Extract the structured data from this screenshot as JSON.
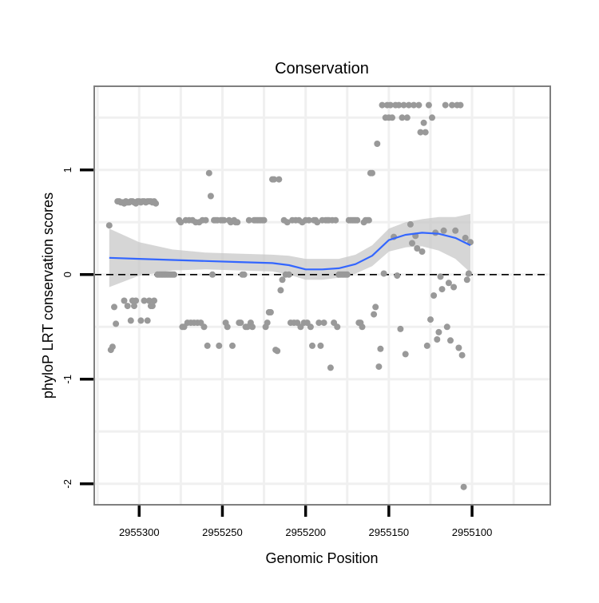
{
  "chart_data": {
    "type": "scatter",
    "title": "Conservation",
    "xlabel": "Genomic Position",
    "ylabel": "phyloP LRT conservation scores",
    "x_reversed": true,
    "xlim": [
      2955327,
      2955053
    ],
    "ylim": [
      -2.2,
      1.8
    ],
    "x_ticks": [
      2955300,
      2955250,
      2955200,
      2955150,
      2955100
    ],
    "x_tick_labels": [
      "2955300",
      "2955250",
      "2955200",
      "2955150",
      "2955100"
    ],
    "y_ticks": [
      -2,
      -1,
      0,
      1
    ],
    "y_tick_labels": [
      "-2",
      "-1",
      "0",
      "1"
    ],
    "grid": true,
    "reference_line": {
      "y": 0,
      "style": "dashed",
      "color": "#000000"
    },
    "colors": {
      "points": "#999999",
      "smooth": "#3366FF",
      "ribbon": "#C8C8C8",
      "grid": "#F0F0F0",
      "frame": "#7F7F7F"
    },
    "points": [
      [
        2955318,
        0.47
      ],
      [
        2955317,
        -0.72
      ],
      [
        2955316,
        -0.69
      ],
      [
        2955315,
        -0.31
      ],
      [
        2955314,
        -0.47
      ],
      [
        2955313,
        0.7
      ],
      [
        2955312,
        0.7
      ],
      [
        2955311,
        0.69
      ],
      [
        2955310,
        0.69
      ],
      [
        2955309,
        0.68
      ],
      [
        2955308,
        0.7
      ],
      [
        2955307,
        0.69
      ],
      [
        2955306,
        0.69
      ],
      [
        2955305,
        0.7
      ],
      [
        2955304,
        0.7
      ],
      [
        2955303,
        0.69
      ],
      [
        2955302,
        0.68
      ],
      [
        2955301,
        0.7
      ],
      [
        2955300,
        0.7
      ],
      [
        2955299,
        0.69
      ],
      [
        2955298,
        0.7
      ],
      [
        2955297,
        0.7
      ],
      [
        2955296,
        0.69
      ],
      [
        2955295,
        0.7
      ],
      [
        2955294,
        0.7
      ],
      [
        2955293,
        0.7
      ],
      [
        2955292,
        0.69
      ],
      [
        2955291,
        0.7
      ],
      [
        2955290,
        0.68
      ],
      [
        2955309,
        -0.25
      ],
      [
        2955307,
        -0.3
      ],
      [
        2955305,
        -0.44
      ],
      [
        2955304,
        -0.25
      ],
      [
        2955303,
        -0.3
      ],
      [
        2955302,
        -0.25
      ],
      [
        2955299,
        -0.44
      ],
      [
        2955297,
        -0.25
      ],
      [
        2955295,
        -0.44
      ],
      [
        2955294,
        -0.25
      ],
      [
        2955293,
        -0.3
      ],
      [
        2955292,
        -0.3
      ],
      [
        2955291,
        -0.25
      ],
      [
        2955289,
        0.0
      ],
      [
        2955288,
        0.0
      ],
      [
        2955287,
        0.0
      ],
      [
        2955286,
        0.0
      ],
      [
        2955285,
        0.0
      ],
      [
        2955284,
        0.0
      ],
      [
        2955283,
        0.0
      ],
      [
        2955282,
        0.0
      ],
      [
        2955281,
        0.0
      ],
      [
        2955280,
        0.0
      ],
      [
        2955279,
        0.0
      ],
      [
        2955276,
        0.52
      ],
      [
        2955275,
        0.5
      ],
      [
        2955274,
        -0.5
      ],
      [
        2955273,
        -0.5
      ],
      [
        2955272,
        0.52
      ],
      [
        2955271,
        -0.46
      ],
      [
        2955270,
        0.52
      ],
      [
        2955269,
        -0.46
      ],
      [
        2955268,
        0.52
      ],
      [
        2955267,
        -0.46
      ],
      [
        2955266,
        0.5
      ],
      [
        2955265,
        -0.46
      ],
      [
        2955264,
        0.5
      ],
      [
        2955263,
        -0.46
      ],
      [
        2955262,
        0.52
      ],
      [
        2955261,
        -0.5
      ],
      [
        2955260,
        0.52
      ],
      [
        2955259,
        -0.68
      ],
      [
        2955258,
        0.97
      ],
      [
        2955257,
        0.75
      ],
      [
        2955256,
        0.0
      ],
      [
        2955255,
        0.52
      ],
      [
        2955254,
        0.52
      ],
      [
        2955253,
        0.52
      ],
      [
        2955252,
        -0.68
      ],
      [
        2955251,
        0.52
      ],
      [
        2955250,
        0.52
      ],
      [
        2955249,
        0.52
      ],
      [
        2955248,
        -0.46
      ],
      [
        2955247,
        -0.5
      ],
      [
        2955246,
        0.52
      ],
      [
        2955245,
        0.5
      ],
      [
        2955244,
        -0.68
      ],
      [
        2955243,
        0.52
      ],
      [
        2955242,
        0.5
      ],
      [
        2955241,
        0.5
      ],
      [
        2955240,
        -0.46
      ],
      [
        2955239,
        -0.46
      ],
      [
        2955238,
        0.0
      ],
      [
        2955237,
        0.0
      ],
      [
        2955236,
        -0.5
      ],
      [
        2955235,
        -0.5
      ],
      [
        2955234,
        0.52
      ],
      [
        2955233,
        -0.46
      ],
      [
        2955232,
        -0.5
      ],
      [
        2955231,
        0.52
      ],
      [
        2955230,
        0.52
      ],
      [
        2955229,
        0.52
      ],
      [
        2955228,
        0.52
      ],
      [
        2955227,
        0.52
      ],
      [
        2955226,
        0.52
      ],
      [
        2955225,
        0.52
      ],
      [
        2955224,
        -0.5
      ],
      [
        2955223,
        -0.46
      ],
      [
        2955222,
        -0.36
      ],
      [
        2955221,
        -0.36
      ],
      [
        2955220,
        0.91
      ],
      [
        2955219,
        0.91
      ],
      [
        2955218,
        -0.72
      ],
      [
        2955217,
        -0.73
      ],
      [
        2955216,
        0.91
      ],
      [
        2955215,
        -0.15
      ],
      [
        2955214,
        -0.05
      ],
      [
        2955213,
        0.52
      ],
      [
        2955212,
        0.0
      ],
      [
        2955211,
        0.5
      ],
      [
        2955210,
        0.0
      ],
      [
        2955209,
        -0.46
      ],
      [
        2955208,
        0.52
      ],
      [
        2955207,
        -0.46
      ],
      [
        2955206,
        0.52
      ],
      [
        2955205,
        -0.46
      ],
      [
        2955204,
        0.52
      ],
      [
        2955203,
        -0.5
      ],
      [
        2955202,
        0.5
      ],
      [
        2955201,
        -0.46
      ],
      [
        2955200,
        0.52
      ],
      [
        2955199,
        -0.46
      ],
      [
        2955198,
        0.52
      ],
      [
        2955197,
        -0.5
      ],
      [
        2955196,
        -0.68
      ],
      [
        2955195,
        0.52
      ],
      [
        2955194,
        0.52
      ],
      [
        2955193,
        0.5
      ],
      [
        2955192,
        -0.46
      ],
      [
        2955191,
        -0.68
      ],
      [
        2955190,
        0.52
      ],
      [
        2955189,
        -0.46
      ],
      [
        2955188,
        0.52
      ],
      [
        2955187,
        0.52
      ],
      [
        2955186,
        0.52
      ],
      [
        2955185,
        -0.89
      ],
      [
        2955184,
        0.52
      ],
      [
        2955183,
        -0.46
      ],
      [
        2955182,
        0.52
      ],
      [
        2955181,
        -0.5
      ],
      [
        2955180,
        0.0
      ],
      [
        2955179,
        0.0
      ],
      [
        2955178,
        0.0
      ],
      [
        2955177,
        0.0
      ],
      [
        2955176,
        0.0
      ],
      [
        2955175,
        0.0
      ],
      [
        2955174,
        0.52
      ],
      [
        2955173,
        0.52
      ],
      [
        2955172,
        0.52
      ],
      [
        2955171,
        0.52
      ],
      [
        2955170,
        0.52
      ],
      [
        2955169,
        0.52
      ],
      [
        2955168,
        -0.46
      ],
      [
        2955167,
        -0.46
      ],
      [
        2955166,
        -0.5
      ],
      [
        2955165,
        0.5
      ],
      [
        2955164,
        0.52
      ],
      [
        2955163,
        0.52
      ],
      [
        2955162,
        0.52
      ],
      [
        2955161,
        0.97
      ],
      [
        2955160,
        0.97
      ],
      [
        2955159,
        -0.38
      ],
      [
        2955158,
        -0.31
      ],
      [
        2955157,
        1.25
      ],
      [
        2955156,
        -0.88
      ],
      [
        2955155,
        -0.71
      ],
      [
        2955154,
        1.62
      ],
      [
        2955153,
        0.01
      ],
      [
        2955152,
        1.5
      ],
      [
        2955151,
        1.62
      ],
      [
        2955150,
        1.5
      ],
      [
        2955149,
        1.62
      ],
      [
        2955148,
        1.5
      ],
      [
        2955147,
        0.36
      ],
      [
        2955146,
        1.62
      ],
      [
        2955145,
        -0.01
      ],
      [
        2955144,
        1.62
      ],
      [
        2955143,
        -0.52
      ],
      [
        2955142,
        1.5
      ],
      [
        2955141,
        1.62
      ],
      [
        2955140,
        -0.76
      ],
      [
        2955139,
        1.5
      ],
      [
        2955138,
        1.62
      ],
      [
        2955137,
        0.48
      ],
      [
        2955136,
        0.3
      ],
      [
        2955135,
        1.62
      ],
      [
        2955134,
        0.37
      ],
      [
        2955133,
        0.25
      ],
      [
        2955132,
        1.62
      ],
      [
        2955131,
        1.36
      ],
      [
        2955130,
        0.22
      ],
      [
        2955129,
        1.45
      ],
      [
        2955128,
        1.36
      ],
      [
        2955127,
        -0.68
      ],
      [
        2955126,
        1.62
      ],
      [
        2955125,
        -0.43
      ],
      [
        2955124,
        1.5
      ],
      [
        2955123,
        -0.2
      ],
      [
        2955122,
        0.4
      ],
      [
        2955121,
        -0.62
      ],
      [
        2955120,
        -0.55
      ],
      [
        2955119,
        -0.02
      ],
      [
        2955118,
        -0.14
      ],
      [
        2955117,
        0.42
      ],
      [
        2955116,
        1.62
      ],
      [
        2955115,
        -0.5
      ],
      [
        2955114,
        -0.08
      ],
      [
        2955113,
        -0.63
      ],
      [
        2955112,
        1.62
      ],
      [
        2955111,
        -0.12
      ],
      [
        2955110,
        0.42
      ],
      [
        2955109,
        1.62
      ],
      [
        2955108,
        -0.7
      ],
      [
        2955107,
        1.62
      ],
      [
        2955106,
        -0.77
      ],
      [
        2955105,
        -2.03
      ],
      [
        2955104,
        0.35
      ],
      [
        2955103,
        -0.05
      ],
      [
        2955102,
        0.01
      ],
      [
        2955101,
        0.31
      ]
    ],
    "smooth_line": {
      "x": [
        2955318,
        2955300,
        2955280,
        2955260,
        2955240,
        2955220,
        2955210,
        2955200,
        2955190,
        2955180,
        2955170,
        2955160,
        2955150,
        2955140,
        2955130,
        2955120,
        2955110,
        2955101
      ],
      "y": [
        0.16,
        0.15,
        0.14,
        0.13,
        0.12,
        0.11,
        0.09,
        0.05,
        0.05,
        0.06,
        0.1,
        0.18,
        0.33,
        0.38,
        0.4,
        0.39,
        0.35,
        0.28
      ]
    },
    "confidence_band": {
      "x": [
        2955318,
        2955300,
        2955280,
        2955260,
        2955240,
        2955220,
        2955210,
        2955200,
        2955190,
        2955180,
        2955170,
        2955160,
        2955150,
        2955140,
        2955130,
        2955120,
        2955110,
        2955101
      ],
      "lower": [
        -0.12,
        -0.01,
        0.04,
        0.05,
        0.04,
        0.03,
        0.0,
        -0.05,
        -0.05,
        -0.03,
        0.01,
        0.08,
        0.22,
        0.26,
        0.27,
        0.23,
        0.15,
        0.02
      ],
      "upper": [
        0.44,
        0.31,
        0.24,
        0.21,
        0.2,
        0.19,
        0.18,
        0.15,
        0.15,
        0.15,
        0.19,
        0.28,
        0.44,
        0.5,
        0.53,
        0.55,
        0.55,
        0.58
      ]
    }
  }
}
